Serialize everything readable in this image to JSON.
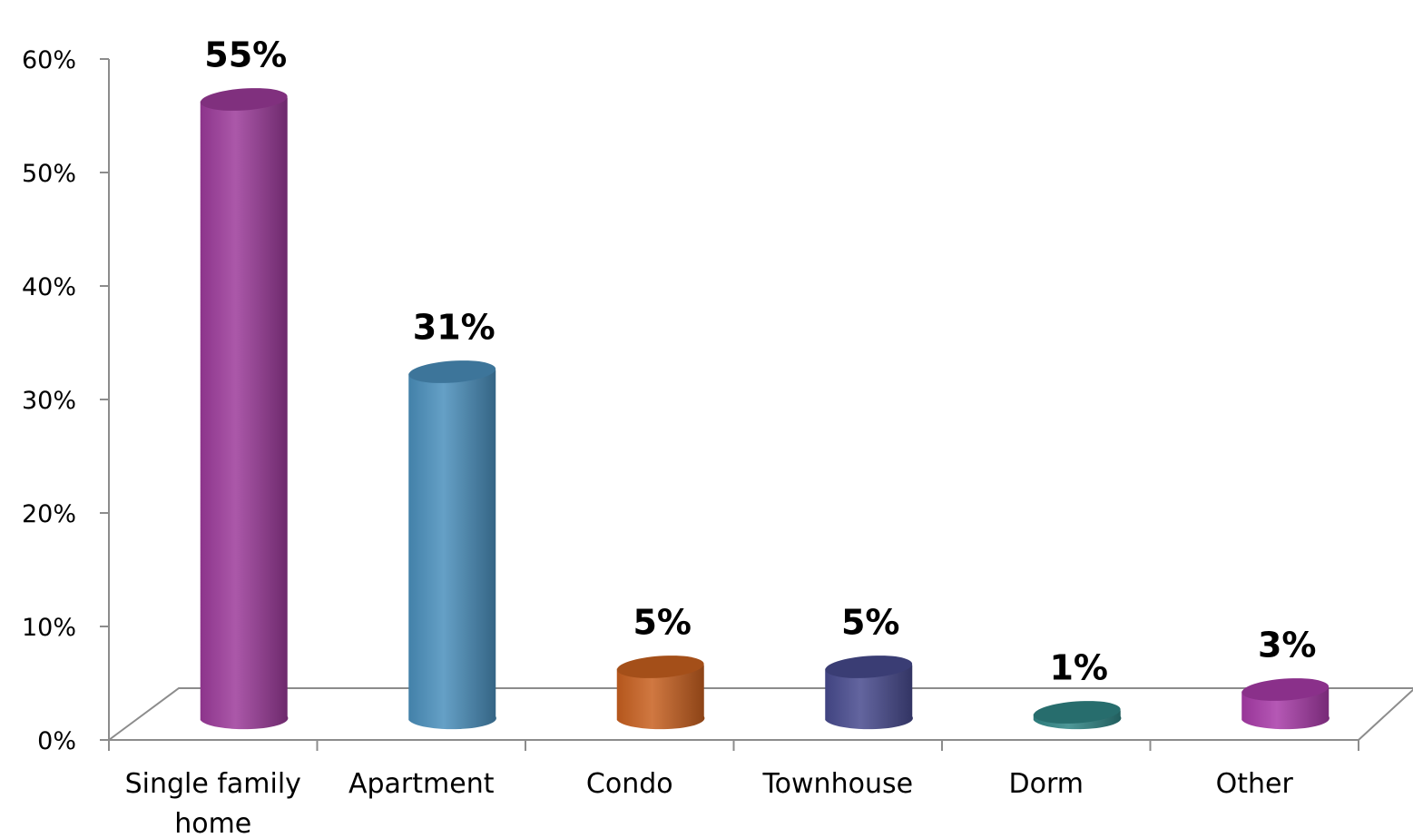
{
  "chart_data": {
    "type": "bar",
    "categories": [
      [
        "Single family",
        "home"
      ],
      [
        "Apartment"
      ],
      [
        "Condo"
      ],
      [
        "Townhouse"
      ],
      [
        "Dorm"
      ],
      [
        "Other"
      ]
    ],
    "values": [
      55,
      31,
      5,
      5,
      1,
      3
    ],
    "data_labels": [
      "55%",
      "31%",
      "5%",
      "5%",
      "1%",
      "3%"
    ],
    "yticks": [
      "0%",
      "10%",
      "20%",
      "30%",
      "40%",
      "50%",
      "60%"
    ],
    "ylim": [
      0,
      60
    ],
    "title": "",
    "xlabel": "",
    "ylabel": "",
    "grid": false,
    "legend": "none",
    "bar_style": "3d-cylinder",
    "colors": [
      "#9c3a9a",
      "#4a8fbc",
      "#c8601f",
      "#474a8e",
      "#2f8585",
      "#a83aa8"
    ]
  }
}
